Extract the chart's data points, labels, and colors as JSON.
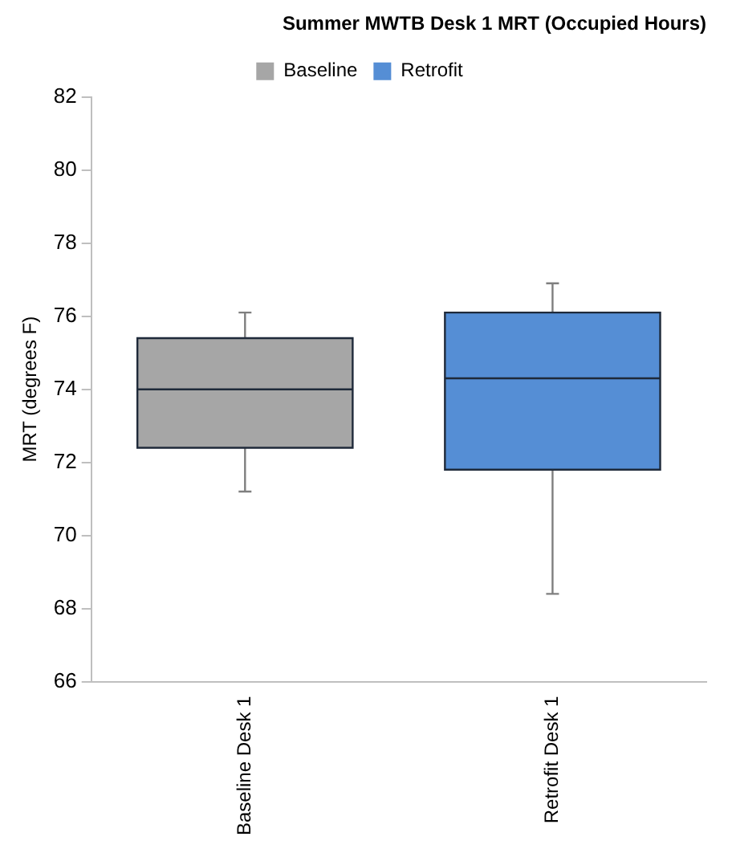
{
  "chart_data": {
    "type": "box",
    "title": "Summer MWTB Desk 1 MRT (Occupied Hours)",
    "ylabel": "MRT (degrees F)",
    "categories": [
      "Baseline Desk 1",
      "Retrofit Desk 1"
    ],
    "series": [
      {
        "name": "Baseline",
        "color": "#a6a6a6",
        "boxes": [
          {
            "low": 71.2,
            "q1": 72.4,
            "median": 74.0,
            "q3": 75.4,
            "high": 76.1
          },
          null
        ]
      },
      {
        "name": "Retrofit",
        "color": "#558ed5",
        "boxes": [
          null,
          {
            "low": 68.4,
            "q1": 71.8,
            "median": 74.3,
            "q3": 76.1,
            "high": 76.9
          }
        ]
      }
    ],
    "ylim": [
      66,
      82
    ],
    "yticks": [
      66,
      68,
      70,
      72,
      74,
      76,
      78,
      80,
      82
    ],
    "grid": false,
    "legend": "top"
  }
}
